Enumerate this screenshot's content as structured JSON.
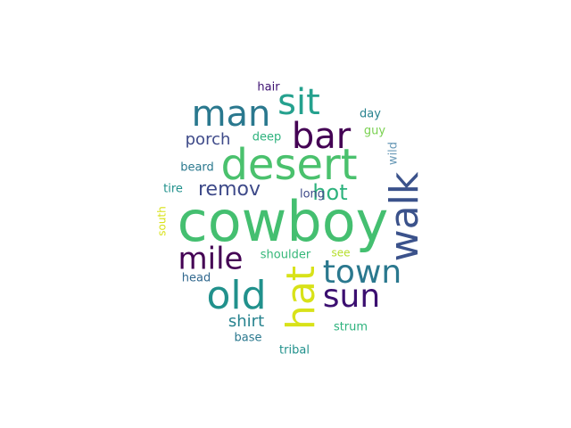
{
  "words": [
    {
      "text": "cowboy",
      "color": "#44bf70",
      "orientation": "horizontal"
    },
    {
      "text": "desert",
      "color": "#4ac16d",
      "orientation": "horizontal"
    },
    {
      "text": "man",
      "color": "#2a788e",
      "orientation": "horizontal"
    },
    {
      "text": "sit",
      "color": "#25a18e",
      "orientation": "horizontal"
    },
    {
      "text": "bar",
      "color": "#440154",
      "orientation": "horizontal"
    },
    {
      "text": "walk",
      "color": "#3b528b",
      "orientation": "vertical"
    },
    {
      "text": "old",
      "color": "#21918c",
      "orientation": "horizontal"
    },
    {
      "text": "hat",
      "color": "#d8e219",
      "orientation": "vertical"
    },
    {
      "text": "town",
      "color": "#2a788e",
      "orientation": "horizontal"
    },
    {
      "text": "sun",
      "color": "#3b0f70",
      "orientation": "horizontal"
    },
    {
      "text": "mile",
      "color": "#440154",
      "orientation": "horizontal"
    },
    {
      "text": "remov",
      "color": "#3e4a89",
      "orientation": "horizontal"
    },
    {
      "text": "hot",
      "color": "#2db27d",
      "orientation": "horizontal"
    },
    {
      "text": "porch",
      "color": "#3e4a89",
      "orientation": "horizontal"
    },
    {
      "text": "shirt",
      "color": "#26828e",
      "orientation": "horizontal"
    },
    {
      "text": "hair",
      "color": "#3b0f70",
      "orientation": "horizontal"
    },
    {
      "text": "day",
      "color": "#26828e",
      "orientation": "horizontal"
    },
    {
      "text": "deep",
      "color": "#2db27d",
      "orientation": "horizontal"
    },
    {
      "text": "guy",
      "color": "#7ad151",
      "orientation": "horizontal"
    },
    {
      "text": "wild",
      "color": "#6b9bb8",
      "orientation": "vertical"
    },
    {
      "text": "beard",
      "color": "#2a788e",
      "orientation": "horizontal"
    },
    {
      "text": "tire",
      "color": "#21918c",
      "orientation": "horizontal"
    },
    {
      "text": "long",
      "color": "#3e4a89",
      "orientation": "horizontal"
    },
    {
      "text": "south",
      "color": "#d8e219",
      "orientation": "vertical"
    },
    {
      "text": "shoulder",
      "color": "#35b779",
      "orientation": "horizontal"
    },
    {
      "text": "see",
      "color": "#b5de2b",
      "orientation": "horizontal"
    },
    {
      "text": "head",
      "color": "#31688e",
      "orientation": "horizontal"
    },
    {
      "text": "strum",
      "color": "#2db27d",
      "orientation": "horizontal"
    },
    {
      "text": "base",
      "color": "#2a788e",
      "orientation": "horizontal"
    },
    {
      "text": "tribal",
      "color": "#21918c",
      "orientation": "horizontal"
    }
  ]
}
